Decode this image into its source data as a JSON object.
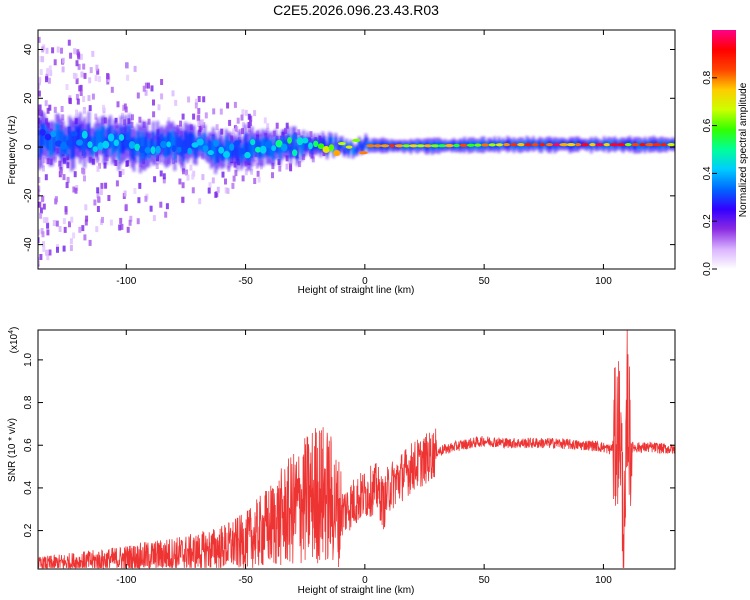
{
  "title": "C2E5.2026.096.23.43.R03",
  "chart_data": [
    {
      "type": "heatmap",
      "xlabel": "Height of straight line (km)",
      "ylabel": "Frequency (Hz)",
      "xlim": [
        -137,
        130
      ],
      "ylim": [
        -50,
        48
      ],
      "xticks": [
        -100,
        -50,
        0,
        50,
        100
      ],
      "yticks": [
        -40,
        -20,
        0,
        20,
        40
      ],
      "colorbar": {
        "label": "Normalized spectral amplitude",
        "range": [
          0,
          1
        ],
        "ticks": [
          0,
          0.2,
          0.4,
          0.6,
          0.8
        ],
        "colormap": [
          "#ffffff",
          "#d9b3ff",
          "#8a2be2",
          "#3300ff",
          "#0066ff",
          "#00ccff",
          "#00ff99",
          "#33ff00",
          "#ccff00",
          "#ffcc00",
          "#ff4400",
          "#ff0000",
          "#ff0088"
        ]
      },
      "ridge": [
        {
          "x": -130,
          "center": 3,
          "width": 7,
          "amplitude": 0.35
        },
        {
          "x": -110,
          "center": 2,
          "width": 6,
          "amplitude": 0.4
        },
        {
          "x": -90,
          "center": 1,
          "width": 6,
          "amplitude": 0.4
        },
        {
          "x": -70,
          "center": 0,
          "width": 5,
          "amplitude": 0.38
        },
        {
          "x": -50,
          "center": -1,
          "width": 5,
          "amplitude": 0.4
        },
        {
          "x": -30,
          "center": 0,
          "width": 4,
          "amplitude": 0.5
        },
        {
          "x": -10,
          "center": 0.5,
          "width": 2,
          "amplitude": 0.7
        },
        {
          "x": 10,
          "center": 0.5,
          "width": 2,
          "amplitude": 0.85
        },
        {
          "x": 30,
          "center": 0.5,
          "width": 2,
          "amplitude": 0.7
        },
        {
          "x": 60,
          "center": 1,
          "width": 2,
          "amplitude": 0.8
        },
        {
          "x": 80,
          "center": 1,
          "width": 2,
          "amplitude": 0.95
        },
        {
          "x": 100,
          "center": 1,
          "width": 2,
          "amplitude": 0.85
        },
        {
          "x": 130,
          "center": 1,
          "width": 2,
          "amplitude": 0.8
        }
      ]
    },
    {
      "type": "line",
      "xlabel": "Height of straight line (km)",
      "ylabel": "SNR (10 * v/v)",
      "yscale_label": "(x10",
      "yscale_exp": "4",
      "yscale_close": ")",
      "xlim": [
        -137,
        130
      ],
      "ylim": [
        0.02,
        1.14
      ],
      "xticks": [
        -100,
        -50,
        0,
        50,
        100
      ],
      "yticks": [
        0.2,
        0.4,
        0.6,
        0.8,
        1.0
      ],
      "color": "#ee3333",
      "series": {
        "name": "SNR",
        "x": [
          -137,
          -125,
          -110,
          -100,
          -90,
          -80,
          -70,
          -60,
          -50,
          -40,
          -30,
          -25,
          -20,
          -15,
          -12,
          -10,
          -5,
          0,
          5,
          8,
          10,
          15,
          20,
          25,
          30,
          40,
          50,
          60,
          70,
          80,
          90,
          95,
          100,
          103,
          105,
          107,
          108,
          109,
          110,
          111,
          112,
          115,
          120,
          130
        ],
        "y": [
          0.04,
          0.05,
          0.06,
          0.07,
          0.08,
          0.09,
          0.1,
          0.12,
          0.15,
          0.22,
          0.3,
          0.34,
          0.38,
          0.36,
          0.3,
          0.28,
          0.33,
          0.37,
          0.4,
          0.32,
          0.4,
          0.45,
          0.5,
          0.53,
          0.57,
          0.6,
          0.62,
          0.61,
          0.61,
          0.61,
          0.6,
          0.6,
          0.59,
          0.58,
          0.62,
          0.72,
          0.35,
          0.1,
          0.85,
          0.62,
          0.59,
          0.59,
          0.59,
          0.58
        ]
      }
    }
  ]
}
